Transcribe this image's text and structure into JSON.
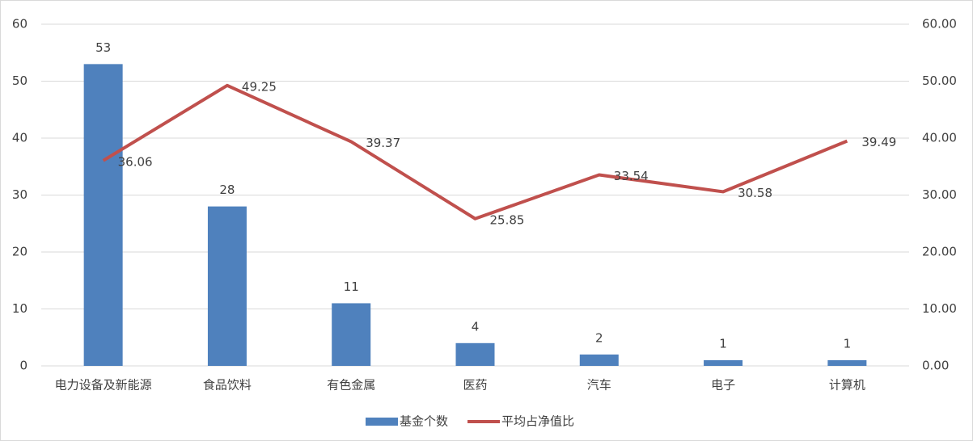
{
  "chart_data": {
    "type": "bar",
    "categories": [
      "电力设备及新能源",
      "食品饮料",
      "有色金属",
      "医药",
      "汽车",
      "电子",
      "计算机"
    ],
    "series": [
      {
        "name": "基金个数",
        "type": "bar",
        "color": "#4f81bd",
        "values": [
          53,
          28,
          11,
          4,
          2,
          1,
          1
        ]
      },
      {
        "name": "平均占净值比",
        "type": "line",
        "axis": "y2",
        "color": "#c0504d",
        "values": [
          36.06,
          49.25,
          39.37,
          25.85,
          33.54,
          30.58,
          39.49
        ]
      }
    ],
    "ylim": [
      0,
      60
    ],
    "yticks": [
      0,
      10,
      20,
      30,
      40,
      50,
      60
    ],
    "y2lim": [
      0,
      60
    ],
    "y2ticks": [
      {
        "value": 0,
        "label": "0.00"
      },
      {
        "value": 10,
        "label": "10.00"
      },
      {
        "value": 20,
        "label": "20.00"
      },
      {
        "value": 30,
        "label": "30.00"
      },
      {
        "value": 40,
        "label": "40.00"
      },
      {
        "value": 50,
        "label": "50.00"
      },
      {
        "value": 60,
        "label": "60.00"
      }
    ],
    "grid": true,
    "legend": "bottom"
  }
}
